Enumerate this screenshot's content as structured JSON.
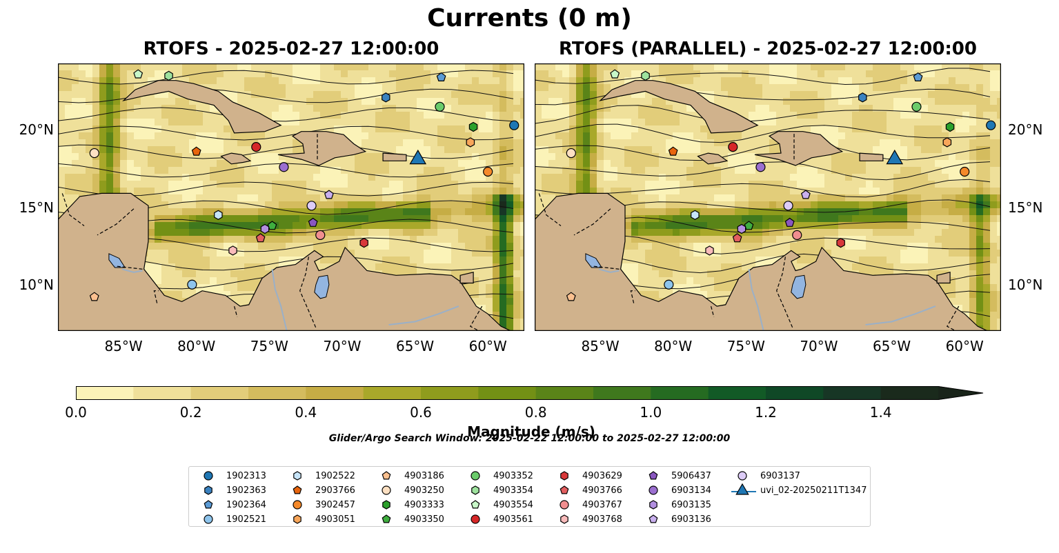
{
  "figure": {
    "suptitle": "Currents (0 m)",
    "search_window": "Glider/Argo Search Window: 2025-02-22 12:00:00 to 2025-02-27 12:00:00"
  },
  "panels": [
    {
      "title": "RTOFS - 2025-02-27 12:00:00"
    },
    {
      "title": "RTOFS (PARALLEL) - 2025-02-27 12:00:00"
    }
  ],
  "axes": {
    "lon_range": [
      -89.5,
      -57.5
    ],
    "lat_range": [
      7.0,
      24.3
    ],
    "x_ticks": [
      {
        "value": -85,
        "label": "85°W"
      },
      {
        "value": -80,
        "label": "80°W"
      },
      {
        "value": -75,
        "label": "75°W"
      },
      {
        "value": -70,
        "label": "70°W"
      },
      {
        "value": -65,
        "label": "65°W"
      },
      {
        "value": -60,
        "label": "60°W"
      }
    ],
    "y_ticks": [
      {
        "value": 20,
        "label": "20°N"
      },
      {
        "value": 15,
        "label": "15°N"
      },
      {
        "value": 10,
        "label": "10°N"
      }
    ]
  },
  "colorbar": {
    "label": "Magnitude (m/s)",
    "range": [
      0,
      1.5
    ],
    "step": 0.1,
    "extend": "max",
    "ticks": [
      "0.0",
      "0.2",
      "0.4",
      "0.6",
      "0.8",
      "1.0",
      "1.2",
      "1.4"
    ],
    "colors": [
      "#fbf3b8",
      "#efe09a",
      "#e2cd7a",
      "#d4bc5e",
      "#c6ad45",
      "#a9a82a",
      "#8f9c1d",
      "#739015",
      "#5a8418",
      "#3f781d",
      "#256b21",
      "#125a26",
      "#0f4826",
      "#173625",
      "#1a2a1c"
    ],
    "extend_color": "#19241a"
  },
  "chart_data": {
    "type": "scatter",
    "x_label": "",
    "y_label": "",
    "series": [
      {
        "name": "1902313",
        "marker": "circle",
        "color": "#1f77b4",
        "points": [
          [
            -58.2,
            20.3
          ]
        ]
      },
      {
        "name": "1902363",
        "marker": "hexagon",
        "color": "#3a82c0",
        "points": [
          [
            -67.0,
            22.1
          ]
        ]
      },
      {
        "name": "1902364",
        "marker": "pentagon",
        "color": "#5b9bd5",
        "points": [
          [
            -63.2,
            23.4
          ]
        ]
      },
      {
        "name": "1902521",
        "marker": "circle",
        "color": "#8ec4ec",
        "points": [
          [
            -80.3,
            10.0
          ]
        ]
      },
      {
        "name": "1902522",
        "marker": "hexagon",
        "color": "#c6e4f8",
        "points": [
          [
            -78.5,
            14.5
          ]
        ]
      },
      {
        "name": "2903766",
        "marker": "pentagon",
        "color": "#e8650e",
        "points": [
          [
            -80.0,
            18.6
          ]
        ]
      },
      {
        "name": "3902457",
        "marker": "circle",
        "color": "#f5892a",
        "points": [
          [
            -60.0,
            17.3
          ]
        ]
      },
      {
        "name": "4903051",
        "marker": "hexagon",
        "color": "#f8a65a",
        "points": [
          [
            -61.2,
            19.2
          ]
        ]
      },
      {
        "name": "4903186",
        "marker": "pentagon",
        "color": "#fbc08f",
        "points": [
          [
            -87.0,
            9.2
          ]
        ]
      },
      {
        "name": "4903250",
        "marker": "circle",
        "color": "#fde0c2",
        "points": [
          [
            -87.0,
            18.5
          ]
        ]
      },
      {
        "name": "4903333",
        "marker": "hexagon",
        "color": "#2ca02c",
        "points": [
          [
            -61.0,
            20.2
          ]
        ]
      },
      {
        "name": "4903350",
        "marker": "pentagon",
        "color": "#3fae3f",
        "points": [
          [
            -74.8,
            13.8
          ]
        ]
      },
      {
        "name": "4903352",
        "marker": "circle",
        "color": "#6bcc6b",
        "points": [
          [
            -63.3,
            21.5
          ]
        ]
      },
      {
        "name": "4903354",
        "marker": "hexagon",
        "color": "#9ee29e",
        "points": [
          [
            -81.9,
            23.5
          ]
        ]
      },
      {
        "name": "4903554",
        "marker": "pentagon",
        "color": "#c8f7c8",
        "points": [
          [
            -84.0,
            23.6
          ]
        ]
      },
      {
        "name": "4903561",
        "marker": "circle",
        "color": "#d62728",
        "points": [
          [
            -75.9,
            18.9
          ]
        ]
      },
      {
        "name": "4903629",
        "marker": "hexagon",
        "color": "#d8383a",
        "points": [
          [
            -68.5,
            12.7
          ]
        ]
      },
      {
        "name": "4903766",
        "marker": "pentagon",
        "color": "#e35f60",
        "points": [
          [
            -75.6,
            13.0
          ]
        ]
      },
      {
        "name": "4903767",
        "marker": "circle",
        "color": "#f08e8f",
        "points": [
          [
            -71.5,
            13.2
          ]
        ]
      },
      {
        "name": "4903768",
        "marker": "hexagon",
        "color": "#f9bbbb",
        "points": [
          [
            -77.5,
            12.2
          ]
        ]
      },
      {
        "name": "5906437",
        "marker": "pentagon",
        "color": "#8a57c0",
        "points": [
          [
            -72.0,
            14.0
          ]
        ]
      },
      {
        "name": "6903134",
        "marker": "circle",
        "color": "#9b6fd0",
        "points": [
          [
            -74.0,
            17.6
          ]
        ]
      },
      {
        "name": "6903135",
        "marker": "hexagon",
        "color": "#b28fe0",
        "points": [
          [
            -75.3,
            13.6
          ]
        ]
      },
      {
        "name": "6903136",
        "marker": "pentagon",
        "color": "#c9b0ee",
        "points": [
          [
            -70.9,
            15.8
          ]
        ]
      },
      {
        "name": "6903137",
        "marker": "circle",
        "color": "#ddccf7",
        "points": [
          [
            -72.1,
            15.1
          ]
        ]
      },
      {
        "name": "uvi_02-20250211T1347",
        "marker": "triangle",
        "color": "#1f77b4",
        "points": [
          [
            -64.8,
            18.1
          ]
        ]
      }
    ]
  },
  "style": {
    "land_color": "#d0b28c",
    "lake_color": "#93b5e0",
    "border_color": "#000000"
  }
}
